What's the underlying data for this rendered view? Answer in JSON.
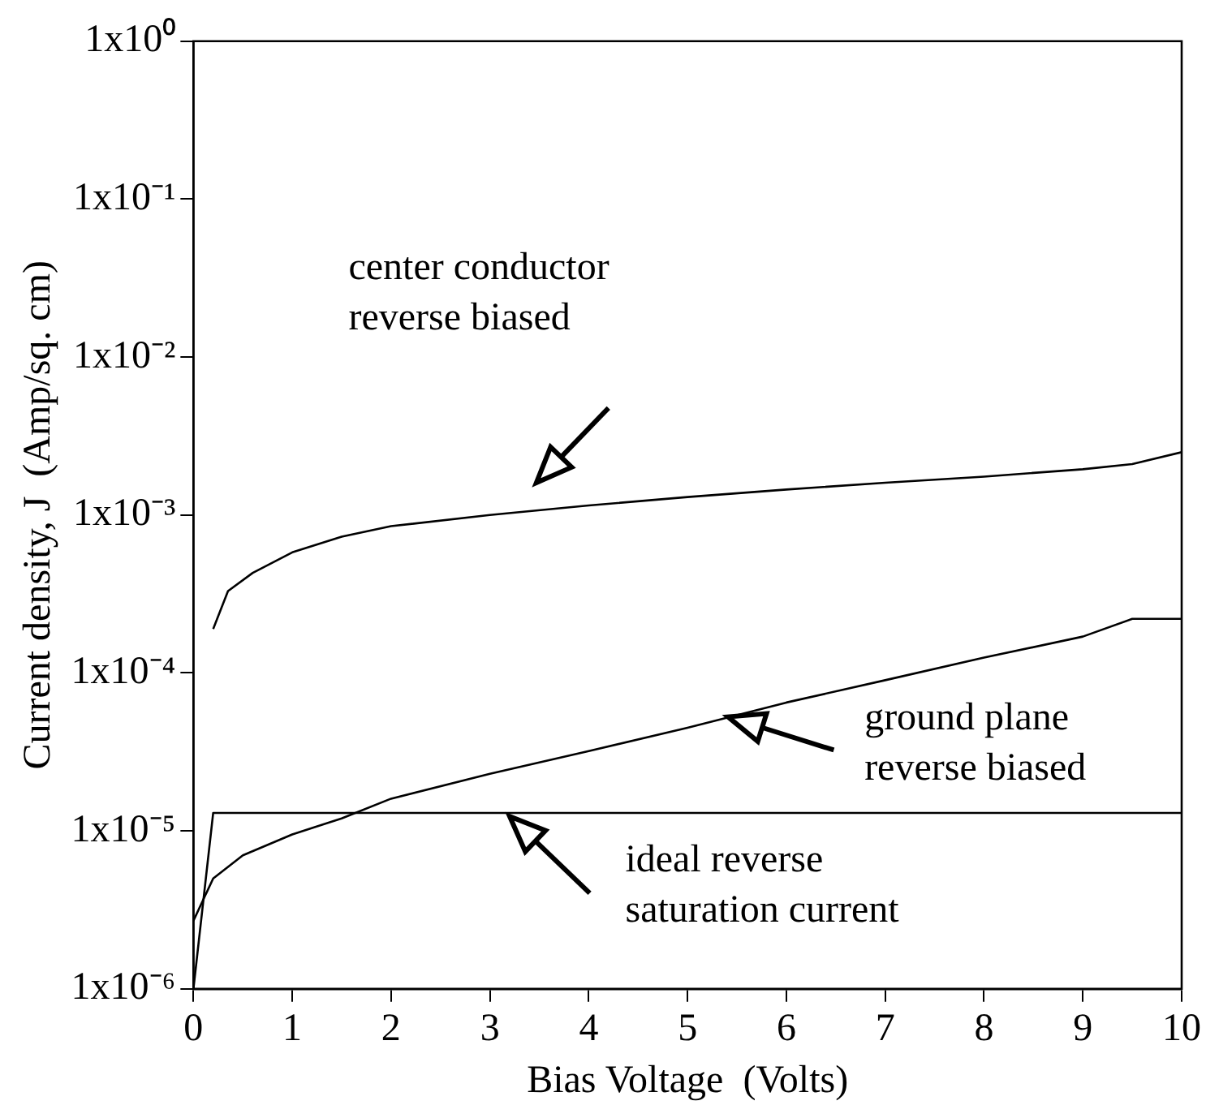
{
  "chart_data": {
    "type": "line",
    "xlabel": "Bias Voltage  (Volts)",
    "ylabel": "Current density, J  (Amp/sq. cm)",
    "log": "y",
    "grid": false,
    "legend": false,
    "marker": "none",
    "line_style": "solid",
    "xlim": [
      0,
      10
    ],
    "xticks": [
      0,
      1,
      2,
      3,
      4,
      5,
      6,
      7,
      8,
      9,
      10
    ],
    "ylim": [
      1e-06,
      1
    ],
    "yticks": [
      {
        "value": 1e-06,
        "label": "1x10⁻⁶"
      },
      {
        "value": 1e-05,
        "label": "1x10⁻⁵"
      },
      {
        "value": 0.0001,
        "label": "1x10⁻⁴"
      },
      {
        "value": 0.001,
        "label": "1x10⁻³"
      },
      {
        "value": 0.01,
        "label": "1x10⁻²"
      },
      {
        "value": 0.1,
        "label": "1x10⁻¹"
      },
      {
        "value": 1,
        "label": "1x10⁰"
      }
    ],
    "series": [
      {
        "color": "#000000",
        "x": [
          0.2,
          0.35,
          0.6,
          1,
          1.5,
          2,
          3,
          4,
          5,
          6,
          7,
          8,
          9,
          9.5,
          10
        ],
        "values": [
          0.00019,
          0.00033,
          0.00043,
          0.00058,
          0.00073,
          0.00085,
          0.001,
          0.00115,
          0.0013,
          0.00145,
          0.0016,
          0.00175,
          0.00195,
          0.0021,
          0.0025
        ]
      },
      {
        "color": "#000000",
        "x": [
          0,
          0.2,
          0.5,
          1,
          1.5,
          2,
          3,
          4,
          5,
          6,
          7,
          8,
          9,
          9.5,
          10
        ],
        "values": [
          2.7e-06,
          5e-06,
          7e-06,
          9.5e-06,
          1.2e-05,
          1.6e-05,
          2.3e-05,
          3.2e-05,
          4.5e-05,
          6.5e-05,
          9e-05,
          0.000125,
          0.00017,
          0.00022,
          0.00022
        ]
      },
      {
        "color": "#000000",
        "x": [
          0,
          0.2,
          10
        ],
        "values": [
          1e-06,
          1.3e-05,
          1.3e-05
        ]
      }
    ],
    "annotations": [
      "center conductor\nreverse biased",
      "ground plane\nreverse biased",
      "ideal reverse\nsaturation current"
    ]
  }
}
